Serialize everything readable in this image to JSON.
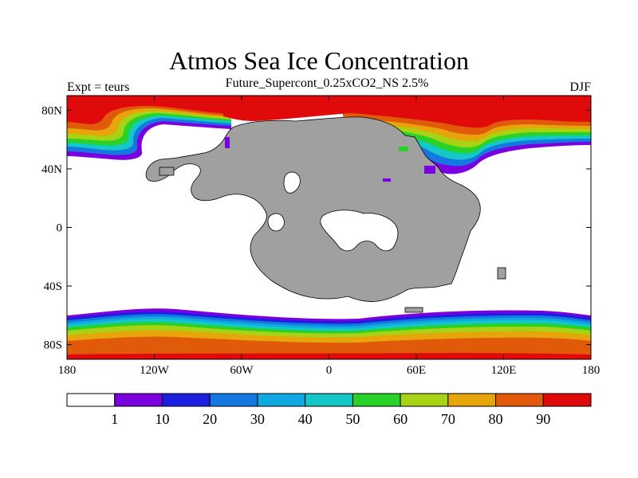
{
  "title": "Atmos Sea Ice Concentration",
  "subtitle": "Future_Supercont_0.25xCO2_NS 2.5%",
  "left_label": "Expt = teurs",
  "right_label": "DJF",
  "map": {
    "projection": "cylindrical equidistant",
    "lon_range": [
      -180,
      180
    ],
    "lat_range": [
      -90,
      90
    ],
    "land_color": "#a0a0a0",
    "x_ticks": [
      {
        "value": -180,
        "label": "180"
      },
      {
        "value": -120,
        "label": "120W"
      },
      {
        "value": -60,
        "label": "60W"
      },
      {
        "value": 0,
        "label": "0"
      },
      {
        "value": 60,
        "label": "60E"
      },
      {
        "value": 120,
        "label": "120E"
      },
      {
        "value": 180,
        "label": "180"
      }
    ],
    "y_ticks": [
      {
        "value": 80,
        "label": "80N"
      },
      {
        "value": 40,
        "label": "40N"
      },
      {
        "value": 0,
        "label": "0"
      },
      {
        "value": -40,
        "label": "40S"
      },
      {
        "value": -80,
        "label": "80S"
      }
    ]
  },
  "colorbar": {
    "colors": [
      "#ffffff",
      "#7a00e0",
      "#1e1ee0",
      "#1478e0",
      "#10a8e0",
      "#14c8c8",
      "#28d228",
      "#a8d214",
      "#e6a50a",
      "#e05a0a",
      "#e10a0a"
    ],
    "labels": [
      "1",
      "10",
      "20",
      "30",
      "40",
      "50",
      "60",
      "70",
      "80",
      "90"
    ]
  }
}
